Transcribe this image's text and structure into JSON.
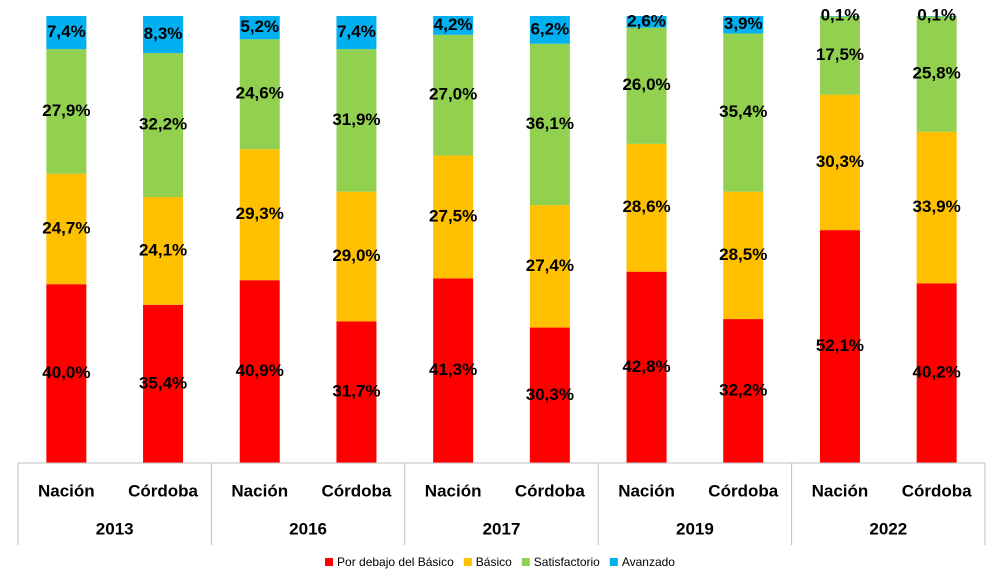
{
  "chart_data": {
    "type": "stacked_bar",
    "groups": [
      "2013",
      "2016",
      "2017",
      "2019",
      "2022"
    ],
    "categories": [
      "Nación",
      "Córdoba",
      "Nación",
      "Córdoba",
      "Nación",
      "Córdoba",
      "Nación",
      "Córdoba",
      "Nación",
      "Córdoba"
    ],
    "series": [
      {
        "name": "Por debajo del Básico",
        "color": "#ff0000",
        "values": [
          40.0,
          35.4,
          40.9,
          31.7,
          41.3,
          30.3,
          42.8,
          32.2,
          52.1,
          40.2
        ],
        "value_labels": [
          "40,0%",
          "35,4%",
          "40,9%",
          "31,7%",
          "41,3%",
          "30,3%",
          "42,8%",
          "32,2%",
          "52,1%",
          "40,2%"
        ]
      },
      {
        "name": "Básico",
        "color": "#ffc000",
        "values": [
          24.7,
          24.1,
          29.3,
          29.0,
          27.5,
          27.4,
          28.6,
          28.5,
          30.3,
          33.9
        ],
        "value_labels": [
          "24,7%",
          "24,1%",
          "29,3%",
          "29,0%",
          "27,5%",
          "27,4%",
          "28,6%",
          "28,5%",
          "30,3%",
          "33,9%"
        ]
      },
      {
        "name": "Satisfactorio",
        "color": "#92d050",
        "values": [
          27.9,
          32.2,
          24.6,
          31.9,
          27.0,
          36.1,
          26.0,
          35.4,
          17.5,
          25.8
        ],
        "value_labels": [
          "27,9%",
          "32,2%",
          "24,6%",
          "31,9%",
          "27,0%",
          "36,1%",
          "26,0%",
          "35,4%",
          "17,5%",
          "25,8%"
        ]
      },
      {
        "name": "Avanzado",
        "color": "#00b0f0",
        "values": [
          7.4,
          8.3,
          5.2,
          7.4,
          4.2,
          6.2,
          2.6,
          3.9,
          0.1,
          0.1
        ],
        "value_labels": [
          "7,4%",
          "8,3%",
          "5,2%",
          "7,4%",
          "4,2%",
          "6,2%",
          "2,6%",
          "3,9%",
          "0,1%",
          "0,1%"
        ]
      }
    ]
  }
}
